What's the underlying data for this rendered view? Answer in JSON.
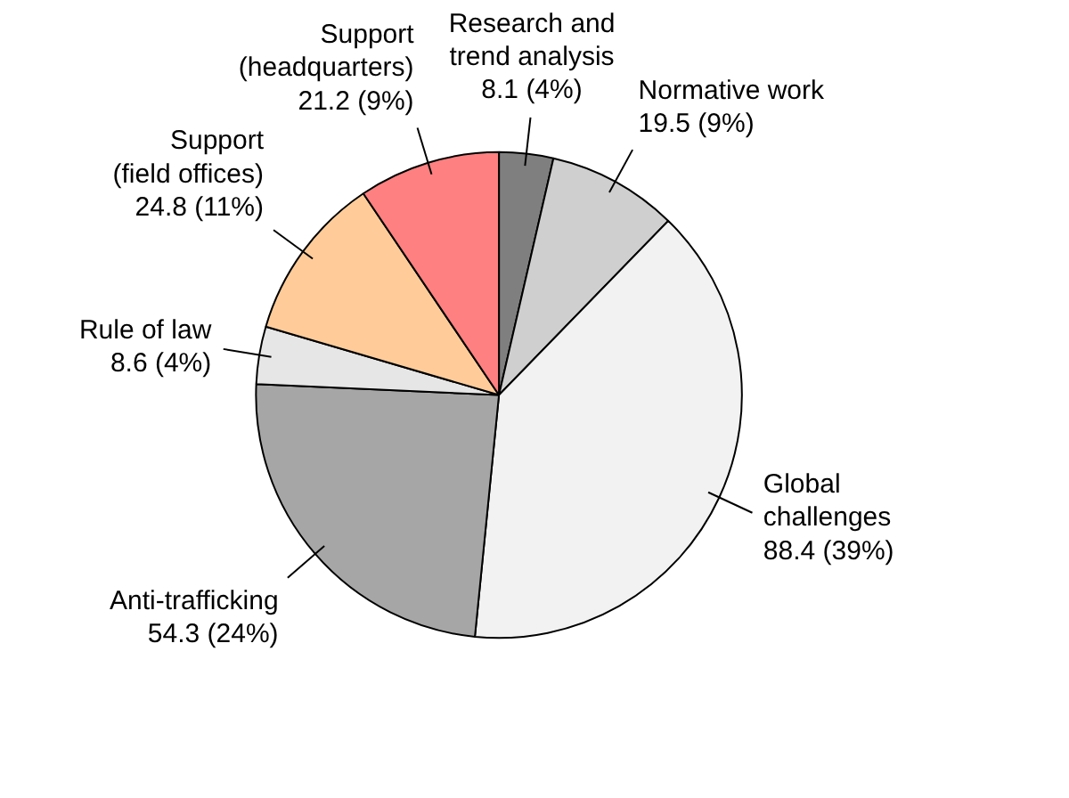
{
  "chart_data": {
    "type": "pie",
    "categories": [
      "Research and trend analysis",
      "Normative work",
      "Global challenges",
      "Anti-trafficking",
      "Rule of law",
      "Support (field offices)",
      "Support (headquarters)"
    ],
    "values": [
      8.1,
      19.5,
      88.4,
      54.3,
      8.6,
      24.8,
      21.2
    ],
    "value_labels": [
      "8.1 (4%)",
      "19.5 (9%)",
      "88.4 (39%)",
      "54.3 (24%)",
      "8.6 (4%)",
      "24.8 (11%)",
      "21.2 (9%)"
    ],
    "colors": [
      "#7f7f7f",
      "#cfcfcf",
      "#f2f2f2",
      "#a6a6a6",
      "#e6e6e6",
      "#ffcc99",
      "#ff8080"
    ]
  }
}
